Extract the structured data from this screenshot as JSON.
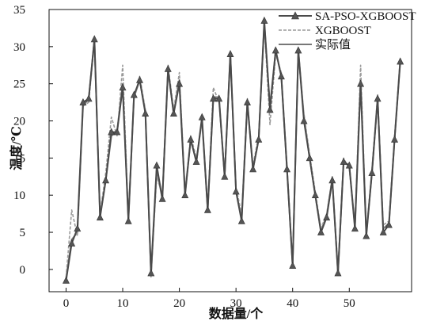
{
  "chart_data": {
    "type": "line",
    "title": "",
    "xlabel": "数据量/个",
    "ylabel": "温度/℃",
    "xlim": [
      -3,
      61
    ],
    "ylim": [
      -3,
      35
    ],
    "xticks": [
      0,
      10,
      20,
      30,
      40,
      50
    ],
    "yticks": [
      0,
      5,
      10,
      15,
      20,
      25,
      30,
      35
    ],
    "xtick_labels": [
      "0",
      "10",
      "20",
      "30",
      "40",
      "50"
    ],
    "ytick_labels": [
      "0",
      "5",
      "10",
      "15",
      "20",
      "25",
      "30",
      "35"
    ],
    "grid": false,
    "legend_position": "top-right",
    "x": [
      0,
      1,
      2,
      3,
      4,
      5,
      6,
      7,
      8,
      9,
      10,
      11,
      12,
      13,
      14,
      15,
      16,
      17,
      18,
      19,
      20,
      21,
      22,
      23,
      24,
      25,
      26,
      27,
      28,
      29,
      30,
      31,
      32,
      33,
      34,
      35,
      36,
      37,
      38,
      39,
      40,
      41,
      42,
      43,
      44,
      45,
      46,
      47,
      48,
      49,
      50,
      51,
      52,
      53,
      54,
      55,
      56,
      57,
      58,
      59
    ],
    "series": [
      {
        "name": "SA-PSO-XGBOOST",
        "color": "#4a4a4a",
        "style": "solid",
        "marker": "triangle",
        "values": [
          -1.5,
          3.5,
          5.5,
          22.5,
          23,
          31,
          7,
          12,
          18.5,
          18.5,
          24.5,
          6.5,
          23.5,
          25.5,
          21,
          -0.5,
          14,
          9.5,
          27,
          21,
          25,
          10,
          17.5,
          14.5,
          20.5,
          8,
          23,
          23,
          12.5,
          29,
          10.5,
          6.5,
          22.5,
          13.5,
          17.5,
          33.5,
          21.5,
          29.5,
          26,
          13.5,
          0.5,
          29.5,
          20,
          15,
          10,
          5,
          7,
          12,
          -0.5,
          14.5,
          14,
          5.5,
          25,
          4.5,
          13,
          23,
          5,
          6,
          17.5,
          28
        ]
      },
      {
        "name": "XGBOOST",
        "color": "#9a9a9a",
        "style": "dashed",
        "values": [
          -1,
          8,
          4.5,
          22,
          22.5,
          30.5,
          7.5,
          13,
          20.5,
          18,
          27.5,
          7,
          23,
          26,
          21.5,
          -1,
          12.5,
          10,
          27.5,
          21.5,
          26.5,
          10.5,
          18,
          15,
          20,
          8.5,
          24.5,
          22.5,
          13,
          28.5,
          11,
          7.5,
          23,
          14,
          18,
          33,
          19.5,
          29,
          26.5,
          14,
          1,
          29,
          21,
          15.5,
          10.5,
          5.5,
          7.5,
          12.5,
          0,
          15,
          13.5,
          6,
          27.5,
          5,
          13.5,
          23.5,
          6,
          6.5,
          18,
          28.5
        ]
      },
      {
        "name": "实际值",
        "color": "#777777",
        "style": "solid",
        "values": [
          -1.2,
          4,
          5,
          22,
          23,
          31,
          7.2,
          12,
          18,
          18.6,
          25,
          6.8,
          23.2,
          25.5,
          21.2,
          -0.8,
          13.5,
          9.5,
          26.8,
          21,
          25.5,
          10.2,
          17.5,
          14.5,
          20.2,
          8,
          23.2,
          23.2,
          12.5,
          29,
          10.5,
          6.8,
          22.5,
          13.5,
          17.5,
          33.2,
          22,
          29.5,
          26,
          13.5,
          0.5,
          29.5,
          20.5,
          15,
          10,
          5.2,
          7.2,
          12.2,
          -0.5,
          14.5,
          14,
          5.8,
          25.5,
          4.8,
          13,
          23,
          5.5,
          6.2,
          17.5,
          28.2
        ]
      }
    ]
  }
}
